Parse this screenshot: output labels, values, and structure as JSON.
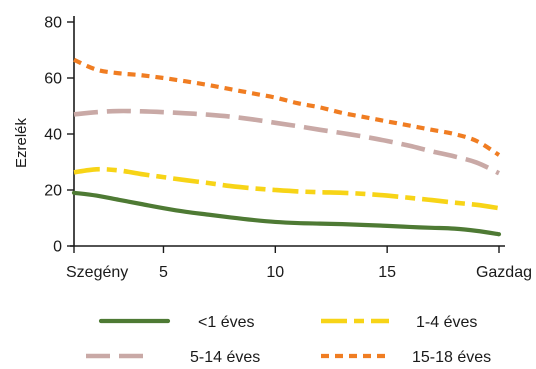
{
  "chart_data": {
    "type": "line",
    "ylabel": "Ezrelék",
    "ylim": [
      0,
      80
    ],
    "xlim": [
      1,
      20
    ],
    "y_ticks": [
      0,
      20,
      40,
      60,
      80
    ],
    "x_ticks": [
      {
        "value": 1,
        "label": "Szegény"
      },
      {
        "value": 5,
        "label": "5"
      },
      {
        "value": 10,
        "label": "10"
      },
      {
        "value": 15,
        "label": "15"
      },
      {
        "value": 20,
        "label": "Gazdag"
      }
    ],
    "grid": false,
    "legend_position": "bottom",
    "series": [
      {
        "name": "<1 éves",
        "color": "#4e7a34",
        "style": "solid",
        "x": [
          1,
          2,
          3,
          4,
          5,
          6,
          7,
          8,
          9,
          10,
          11,
          12,
          13,
          14,
          15,
          16,
          17,
          18,
          19,
          20
        ],
        "values": [
          19,
          18,
          16.5,
          15,
          13.5,
          12.2,
          11.2,
          10.2,
          9.3,
          8.6,
          8.2,
          8,
          7.8,
          7.5,
          7.2,
          6.8,
          6.5,
          6.2,
          5.4,
          4.2
        ]
      },
      {
        "name": "1-4 éves",
        "color": "#f7d417",
        "style": "dashdot",
        "x": [
          1,
          2,
          3,
          4,
          5,
          6,
          7,
          8,
          9,
          10,
          11,
          12,
          13,
          14,
          15,
          16,
          17,
          18,
          19,
          20
        ],
        "values": [
          26.3,
          27.4,
          27,
          25.7,
          24.6,
          23.5,
          22.5,
          21.4,
          20.6,
          20,
          19.5,
          19.2,
          19,
          18.6,
          18,
          17.2,
          16.4,
          15.5,
          14.7,
          13.5
        ]
      },
      {
        "name": "5-14 éves",
        "color": "#c9a9a6",
        "style": "dashed",
        "x": [
          1,
          2,
          3,
          4,
          5,
          6,
          7,
          8,
          9,
          10,
          11,
          12,
          13,
          14,
          15,
          16,
          17,
          18,
          19,
          20
        ],
        "values": [
          47,
          47.8,
          48.2,
          48.1,
          47.8,
          47.4,
          46.9,
          46.2,
          45.2,
          44,
          42.8,
          41.5,
          40.3,
          39,
          37.5,
          35.8,
          33.8,
          32,
          29.8,
          26
        ]
      },
      {
        "name": "15-18 éves",
        "color": "#f07d22",
        "style": "dotted",
        "x": [
          1,
          2,
          3,
          4,
          5,
          6,
          7,
          8,
          9,
          10,
          11,
          12,
          13,
          14,
          15,
          16,
          17,
          18,
          19,
          20
        ],
        "values": [
          66.5,
          63,
          61.7,
          61,
          60,
          58.8,
          57.5,
          56,
          54.5,
          53,
          51,
          49.5,
          47.5,
          46,
          44.5,
          43,
          41.5,
          40,
          37.5,
          32.5
        ]
      }
    ]
  }
}
